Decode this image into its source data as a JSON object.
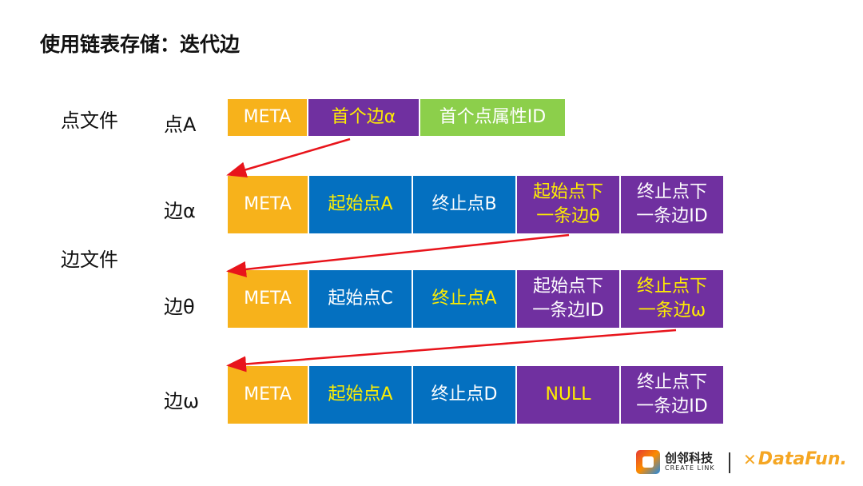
{
  "title": "使用链表存储：迭代边",
  "file_labels": {
    "vertex_file": "点文件",
    "edge_file": "边文件"
  },
  "rows": [
    {
      "label": "点A",
      "cells": [
        {
          "text": "META",
          "style": "meta"
        },
        {
          "text": "首个边α",
          "style": "purple",
          "text_color": "yellow"
        },
        {
          "text": "首个点属性ID",
          "style": "green"
        }
      ]
    },
    {
      "label": "边α",
      "cells": [
        {
          "text": "META",
          "style": "meta"
        },
        {
          "text": "起始点A",
          "style": "blue",
          "text_color": "yellow"
        },
        {
          "text": "终止点B",
          "style": "blue",
          "text_color": "white"
        },
        {
          "text": "起始点下\n一条边θ",
          "style": "purple",
          "text_color": "yellow"
        },
        {
          "text": "终止点下\n一条边ID",
          "style": "purple",
          "text_color": "white"
        }
      ]
    },
    {
      "label": "边θ",
      "cells": [
        {
          "text": "META",
          "style": "meta"
        },
        {
          "text": "起始点C",
          "style": "blue",
          "text_color": "white"
        },
        {
          "text": "终止点A",
          "style": "blue",
          "text_color": "yellow"
        },
        {
          "text": "起始点下\n一条边ID",
          "style": "purple",
          "text_color": "white"
        },
        {
          "text": "终止点下\n一条边ω",
          "style": "purple",
          "text_color": "yellow"
        }
      ]
    },
    {
      "label": "边ω",
      "cells": [
        {
          "text": "META",
          "style": "meta"
        },
        {
          "text": "起始点A",
          "style": "blue",
          "text_color": "yellow"
        },
        {
          "text": "终止点D",
          "style": "blue",
          "text_color": "white"
        },
        {
          "text": "NULL",
          "style": "purple",
          "text_color": "yellow"
        },
        {
          "text": "终止点下\n一条边ID",
          "style": "purple",
          "text_color": "white"
        }
      ]
    }
  ],
  "colors": {
    "meta": "#f7b21b",
    "purple": "#7030a0",
    "green": "#8ccf4b",
    "blue": "#0470c0",
    "arrow": "#e8141b",
    "highlight_text": "#ffee00"
  },
  "footer": {
    "logo1_cn": "创邻科技",
    "logo1_en": "CREATE LINK",
    "logo2": "DataFun."
  }
}
